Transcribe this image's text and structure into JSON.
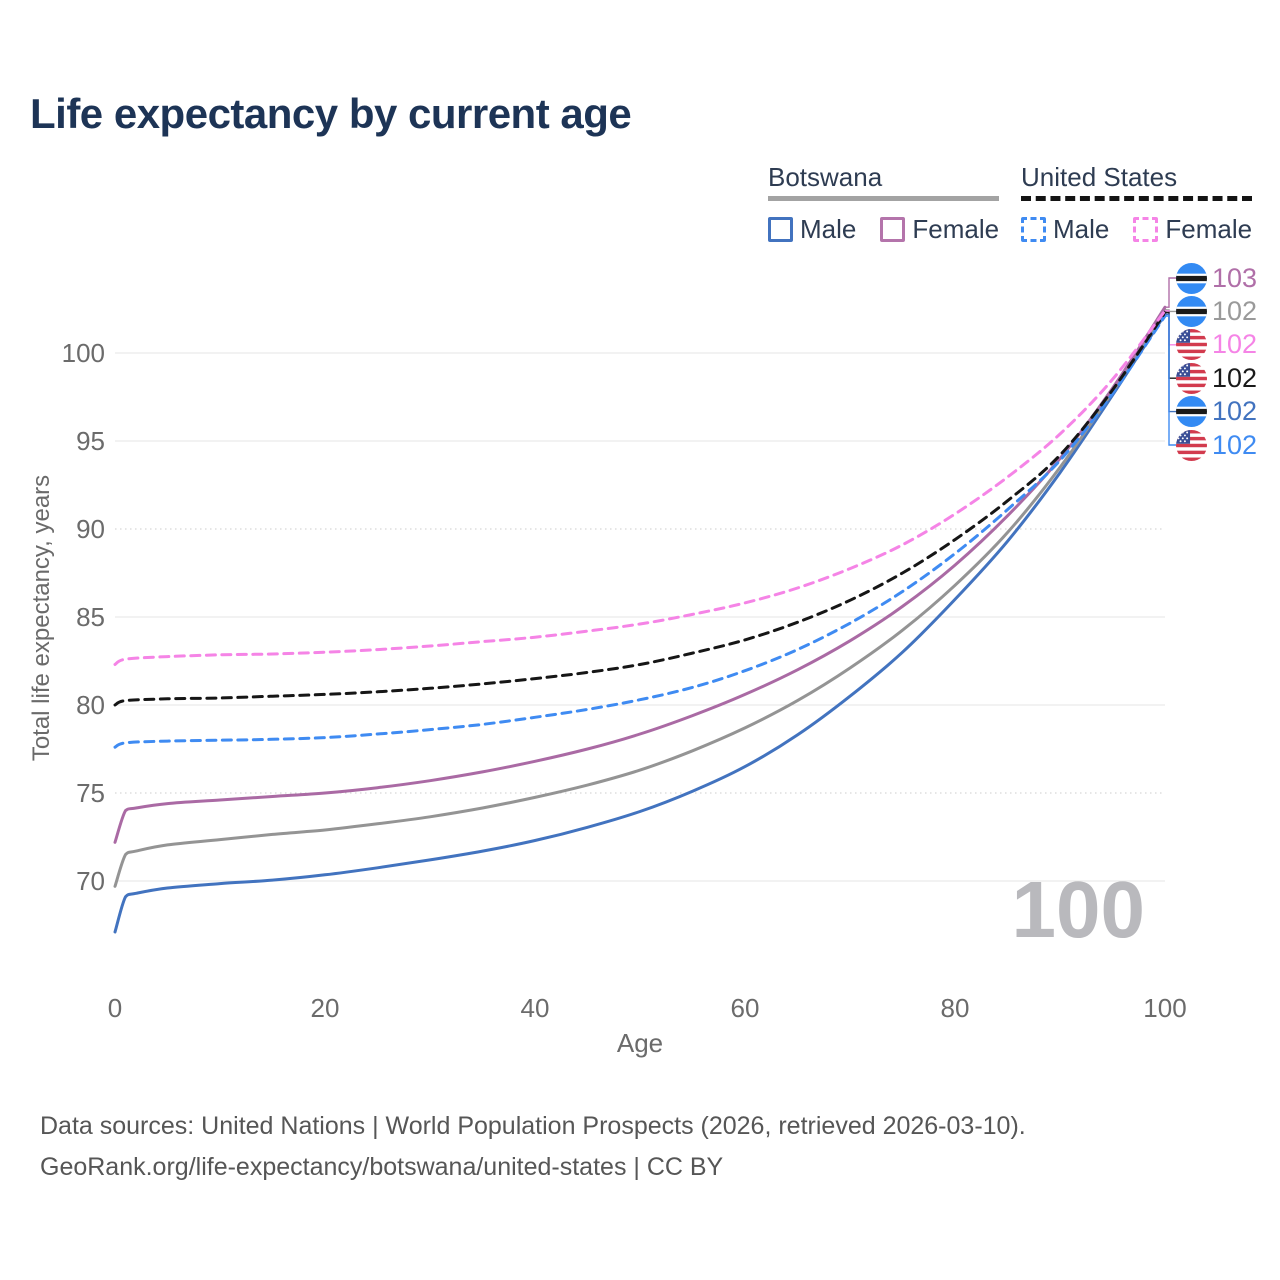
{
  "title": "Life expectancy by current age",
  "watermark": "100",
  "legend": {
    "groups": [
      {
        "label": "Botswana",
        "line_style": "solid",
        "underline_color": "#a3a3a3",
        "items": [
          {
            "label": "Male",
            "color": "#4273bf",
            "dashed": false
          },
          {
            "label": "Female",
            "color": "#b474ab",
            "dashed": false
          }
        ]
      },
      {
        "label": "United States",
        "line_style": "dashed",
        "underline_color": "#141414",
        "items": [
          {
            "label": "Male",
            "color": "#3f8bf2",
            "dashed": true
          },
          {
            "label": "Female",
            "color": "#f584e6",
            "dashed": true
          }
        ]
      }
    ]
  },
  "footer": {
    "line1": "Data sources: United Nations | World Population Prospects (2026, retrieved 2026-03-10).",
    "line2": "GeoRank.org/life-expectancy/botswana/united-states | CC BY"
  },
  "chart_data": {
    "type": "line",
    "title": "Life expectancy by current age",
    "xlabel": "Age",
    "ylabel": "Total life expectancy, years",
    "xlim": [
      0,
      100
    ],
    "ylim": [
      66,
      103
    ],
    "x_ticks": [
      0,
      20,
      40,
      60,
      80,
      100
    ],
    "y_ticks": [
      70,
      75,
      80,
      85,
      90,
      95,
      100
    ],
    "dotted_gridlines": [
      75,
      90
    ],
    "grid": true,
    "legend_position": "top-right",
    "series": [
      {
        "id": "botswana_male",
        "name": "Botswana Male",
        "color": "#4273bf",
        "dash": "solid",
        "points": [
          [
            0,
            67.1
          ],
          [
            1,
            69.1
          ],
          [
            2,
            69.3
          ],
          [
            5,
            69.6
          ],
          [
            10,
            69.85
          ],
          [
            15,
            70.05
          ],
          [
            20,
            70.35
          ],
          [
            25,
            70.75
          ],
          [
            30,
            71.2
          ],
          [
            35,
            71.7
          ],
          [
            40,
            72.3
          ],
          [
            45,
            73.05
          ],
          [
            50,
            73.95
          ],
          [
            55,
            75.1
          ],
          [
            60,
            76.5
          ],
          [
            65,
            78.3
          ],
          [
            70,
            80.5
          ],
          [
            75,
            83.0
          ],
          [
            80,
            86.0
          ],
          [
            85,
            89.3
          ],
          [
            90,
            93.2
          ],
          [
            95,
            97.6
          ],
          [
            100,
            102.2
          ]
        ]
      },
      {
        "id": "botswana_total",
        "name": "Botswana Both sexes",
        "color": "#949494",
        "dash": "solid",
        "points": [
          [
            0,
            69.7
          ],
          [
            1,
            71.5
          ],
          [
            2,
            71.7
          ],
          [
            5,
            72.05
          ],
          [
            10,
            72.35
          ],
          [
            15,
            72.65
          ],
          [
            20,
            72.9
          ],
          [
            25,
            73.25
          ],
          [
            30,
            73.65
          ],
          [
            35,
            74.15
          ],
          [
            40,
            74.75
          ],
          [
            45,
            75.45
          ],
          [
            50,
            76.3
          ],
          [
            55,
            77.4
          ],
          [
            60,
            78.7
          ],
          [
            65,
            80.25
          ],
          [
            70,
            82.1
          ],
          [
            75,
            84.25
          ],
          [
            80,
            86.8
          ],
          [
            85,
            89.8
          ],
          [
            90,
            93.5
          ],
          [
            95,
            97.8
          ],
          [
            100,
            102.45
          ]
        ]
      },
      {
        "id": "botswana_female",
        "name": "Botswana Female",
        "color": "#aa6aa4",
        "dash": "solid",
        "points": [
          [
            0,
            72.2
          ],
          [
            1,
            74.0
          ],
          [
            2,
            74.15
          ],
          [
            5,
            74.4
          ],
          [
            10,
            74.6
          ],
          [
            15,
            74.8
          ],
          [
            20,
            75.0
          ],
          [
            25,
            75.3
          ],
          [
            30,
            75.7
          ],
          [
            35,
            76.2
          ],
          [
            40,
            76.8
          ],
          [
            45,
            77.5
          ],
          [
            50,
            78.35
          ],
          [
            55,
            79.4
          ],
          [
            60,
            80.6
          ],
          [
            65,
            82.0
          ],
          [
            70,
            83.65
          ],
          [
            75,
            85.6
          ],
          [
            80,
            87.95
          ],
          [
            85,
            90.75
          ],
          [
            90,
            94.0
          ],
          [
            95,
            98.0
          ],
          [
            100,
            102.6
          ]
        ]
      },
      {
        "id": "us_male",
        "name": "United States Male",
        "color": "#3f8bf2",
        "dash": "dashed",
        "points": [
          [
            0,
            77.6
          ],
          [
            1,
            77.85
          ],
          [
            5,
            77.95
          ],
          [
            10,
            78.0
          ],
          [
            15,
            78.05
          ],
          [
            20,
            78.15
          ],
          [
            25,
            78.35
          ],
          [
            30,
            78.6
          ],
          [
            35,
            78.9
          ],
          [
            40,
            79.3
          ],
          [
            45,
            79.75
          ],
          [
            50,
            80.3
          ],
          [
            55,
            81.0
          ],
          [
            60,
            81.95
          ],
          [
            65,
            83.15
          ],
          [
            70,
            84.65
          ],
          [
            75,
            86.45
          ],
          [
            80,
            88.6
          ],
          [
            85,
            91.1
          ],
          [
            90,
            93.9
          ],
          [
            95,
            97.7
          ],
          [
            100,
            102.1
          ]
        ]
      },
      {
        "id": "us_total",
        "name": "United States Both sexes",
        "color": "#161616",
        "dash": "dashed",
        "points": [
          [
            0,
            80.0
          ],
          [
            1,
            80.25
          ],
          [
            5,
            80.35
          ],
          [
            10,
            80.4
          ],
          [
            15,
            80.5
          ],
          [
            20,
            80.6
          ],
          [
            25,
            80.75
          ],
          [
            30,
            80.95
          ],
          [
            35,
            81.2
          ],
          [
            40,
            81.5
          ],
          [
            45,
            81.85
          ],
          [
            50,
            82.3
          ],
          [
            55,
            82.95
          ],
          [
            60,
            83.7
          ],
          [
            65,
            84.7
          ],
          [
            70,
            85.95
          ],
          [
            75,
            87.5
          ],
          [
            80,
            89.4
          ],
          [
            85,
            91.6
          ],
          [
            90,
            94.2
          ],
          [
            95,
            97.9
          ],
          [
            100,
            102.3
          ]
        ]
      },
      {
        "id": "us_female",
        "name": "United States Female",
        "color": "#f584e6",
        "dash": "dashed",
        "points": [
          [
            0,
            82.3
          ],
          [
            1,
            82.6
          ],
          [
            5,
            82.75
          ],
          [
            10,
            82.85
          ],
          [
            15,
            82.9
          ],
          [
            20,
            83.0
          ],
          [
            25,
            83.15
          ],
          [
            30,
            83.35
          ],
          [
            35,
            83.6
          ],
          [
            40,
            83.85
          ],
          [
            45,
            84.2
          ],
          [
            50,
            84.6
          ],
          [
            55,
            85.15
          ],
          [
            60,
            85.8
          ],
          [
            65,
            86.65
          ],
          [
            70,
            87.75
          ],
          [
            75,
            89.1
          ],
          [
            80,
            90.85
          ],
          [
            85,
            92.95
          ],
          [
            90,
            95.4
          ],
          [
            95,
            98.5
          ],
          [
            100,
            102.4
          ]
        ]
      }
    ],
    "end_labels": [
      {
        "series": "botswana_female",
        "value": "103",
        "flag": "botswana",
        "color": "#b06fa8"
      },
      {
        "series": "botswana_total",
        "value": "102",
        "flag": "botswana",
        "color": "#9a9a9a"
      },
      {
        "series": "us_female",
        "value": "102",
        "flag": "us",
        "color": "#f584e6"
      },
      {
        "series": "us_total",
        "value": "102",
        "flag": "us",
        "color": "#1a1a1a"
      },
      {
        "series": "botswana_male",
        "value": "102",
        "flag": "botswana",
        "color": "#4273bf"
      },
      {
        "series": "us_male",
        "value": "102",
        "flag": "us",
        "color": "#3f8bf2"
      }
    ]
  }
}
